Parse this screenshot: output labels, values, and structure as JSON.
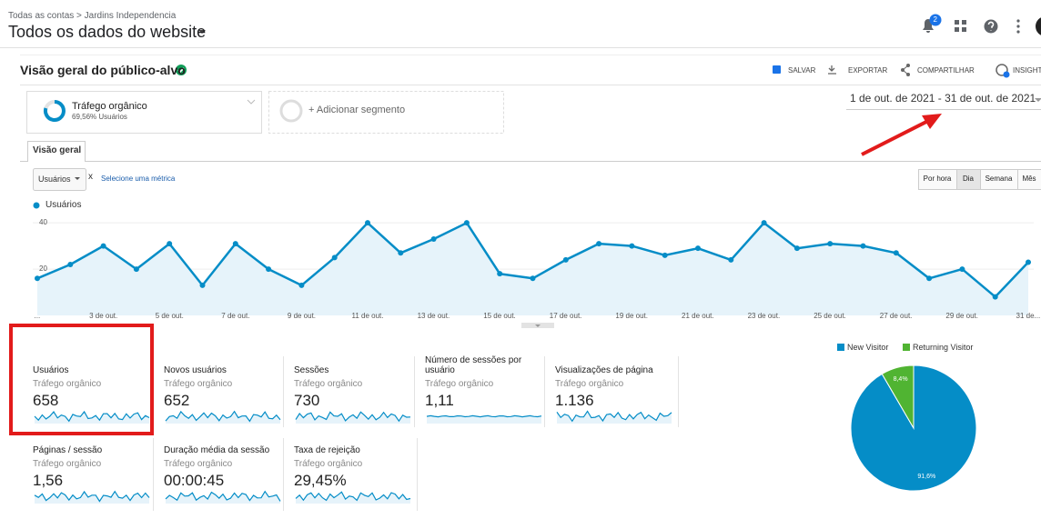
{
  "header": {
    "breadcrumb": "Todas as contas > Jardins Independencia",
    "title": "Todos os dados do website",
    "notifications": "2"
  },
  "report": {
    "title": "Visão geral do público-alvo",
    "actions": [
      "SALVAR",
      "EXPORTAR",
      "COMPARTILHAR",
      "INSIGHT"
    ]
  },
  "segments": {
    "active": {
      "name": "Tráfego orgânico",
      "detail": "69,56% Usuários"
    },
    "add": "+ Adicionar segmento"
  },
  "date_range": "1 de out. de 2021 - 31 de out. de 2021",
  "tabs": [
    "Visão geral"
  ],
  "metric_selector": {
    "metric": "Usuários",
    "close": "x",
    "other": "Selecione uma métrica"
  },
  "granularity": {
    "options": [
      "Por hora",
      "Dia",
      "Semana",
      "Mês"
    ],
    "active": 1
  },
  "chart_data": [
    {
      "type": "line",
      "categories": [
        "...",
        null,
        "3 de out.",
        null,
        "5 de out.",
        null,
        "7 de out.",
        null,
        "9 de out.",
        null,
        "11 de out.",
        null,
        "13 de out.",
        null,
        "15 de out.",
        null,
        "17 de out.",
        null,
        "19 de out.",
        null,
        "21 de out.",
        null,
        "23 de out.",
        null,
        "25 de out.",
        null,
        "27 de out.",
        null,
        "29 de out.",
        null,
        "31 de..."
      ],
      "series": [
        {
          "name": "Usuários",
          "color": "#058dc7",
          "values": [
            16,
            22,
            30,
            20,
            31,
            13,
            31,
            20,
            13,
            25,
            40,
            27,
            33,
            40,
            18,
            16,
            24,
            31,
            30,
            26,
            29,
            24,
            40,
            29,
            31,
            30,
            27,
            16,
            20,
            8,
            23
          ]
        }
      ],
      "ylim": [
        0,
        44
      ],
      "yticks": [
        20,
        40
      ],
      "grid": true
    },
    {
      "type": "pie",
      "categories": [
        "New Visitor",
        "Returning Visitor"
      ],
      "values": [
        91.6,
        8.4
      ],
      "value_labels": [
        "91,6%",
        "8,4%"
      ],
      "colors": [
        "#058dc7",
        "#50b432"
      ]
    }
  ],
  "metrics": [
    {
      "name": "Usuários",
      "segment": "Tráfego orgânico",
      "value": "658"
    },
    {
      "name": "Novos usuários",
      "segment": "Tráfego orgânico",
      "value": "652"
    },
    {
      "name": "Sessões",
      "segment": "Tráfego orgânico",
      "value": "730"
    },
    {
      "name": "Número de sessões por usuário",
      "segment": "Tráfego orgânico",
      "value": "1,11"
    },
    {
      "name": "Visualizações de página",
      "segment": "Tráfego orgânico",
      "value": "1.136"
    },
    {
      "name": "Páginas / sessão",
      "segment": "Tráfego orgânico",
      "value": "1,56"
    },
    {
      "name": "Duração média da sessão",
      "segment": "Tráfego orgânico",
      "value": "00:00:45"
    },
    {
      "name": "Taxa de rejeição",
      "segment": "Tráfego orgânico",
      "value": "29,45%"
    }
  ]
}
